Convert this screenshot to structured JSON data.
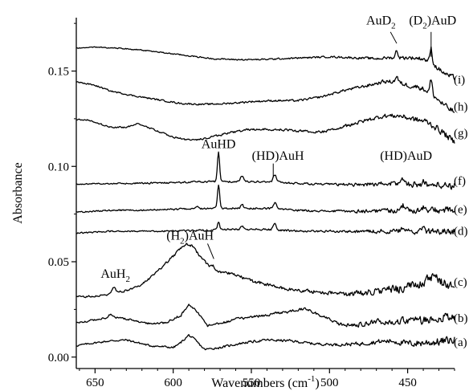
{
  "chart_data": {
    "type": "line",
    "xlabel": "Wavenumbers (cm",
    "xlabel_sup": "-1",
    "xlabel_end": ")",
    "ylabel": "Absorbance",
    "xlim": [
      662,
      420
    ],
    "ylim": [
      -0.006,
      0.178
    ],
    "x_ticks": [
      650,
      600,
      550,
      500,
      450
    ],
    "y_ticks": [
      0.0,
      0.05,
      0.1,
      0.15
    ],
    "y_tick_labels": [
      "0.00",
      "0.05",
      "0.10",
      "0.15"
    ],
    "grid": false,
    "series": [
      {
        "name": "(a)",
        "label_y": 0.0078,
        "base": [
          [
            662,
            0.006
          ],
          [
            650,
            0.0075
          ],
          [
            640,
            0.0085
          ],
          [
            630,
            0.009
          ],
          [
            615,
            0.006
          ],
          [
            600,
            0.005
          ],
          [
            596,
            0.007
          ],
          [
            590,
            0.0115
          ],
          [
            586,
            0.009
          ],
          [
            580,
            0.004
          ],
          [
            570,
            0.005
          ],
          [
            555,
            0.0075
          ],
          [
            540,
            0.009
          ],
          [
            525,
            0.0085
          ],
          [
            510,
            0.007
          ],
          [
            495,
            0.0065
          ],
          [
            480,
            0.007
          ],
          [
            470,
            0.008
          ],
          [
            460,
            0.0085
          ],
          [
            450,
            0.007
          ],
          [
            440,
            0.0075
          ],
          [
            430,
            0.008
          ],
          [
            420,
            0.009
          ]
        ],
        "noise": [
          [
            662,
            0.0004
          ],
          [
            500,
            0.0006
          ],
          [
            460,
            0.0012
          ],
          [
            440,
            0.0018
          ],
          [
            420,
            0.002
          ]
        ],
        "peaks": []
      },
      {
        "name": "(b)",
        "label_y": 0.0205,
        "base": [
          [
            662,
            0.018
          ],
          [
            650,
            0.0195
          ],
          [
            640,
            0.021
          ],
          [
            630,
            0.02
          ],
          [
            615,
            0.0175
          ],
          [
            605,
            0.018
          ],
          [
            595,
            0.022
          ],
          [
            590,
            0.0275
          ],
          [
            585,
            0.024
          ],
          [
            578,
            0.0165
          ],
          [
            570,
            0.0175
          ],
          [
            560,
            0.02
          ],
          [
            545,
            0.0215
          ],
          [
            525,
            0.024
          ],
          [
            515,
            0.0255
          ],
          [
            505,
            0.0215
          ],
          [
            495,
            0.0175
          ],
          [
            485,
            0.0165
          ],
          [
            470,
            0.0185
          ],
          [
            455,
            0.019
          ],
          [
            440,
            0.0195
          ],
          [
            430,
            0.0205
          ],
          [
            420,
            0.021
          ]
        ],
        "noise": [
          [
            662,
            0.0004
          ],
          [
            500,
            0.0007
          ],
          [
            460,
            0.0014
          ],
          [
            440,
            0.002
          ],
          [
            420,
            0.0022
          ]
        ],
        "peaks": [
          [
            640,
            0.0015,
            1.5
          ]
        ]
      },
      {
        "name": "(c)",
        "label_y": 0.0395,
        "base": [
          [
            662,
            0.0315
          ],
          [
            650,
            0.032
          ],
          [
            640,
            0.033
          ],
          [
            630,
            0.035
          ],
          [
            620,
            0.038
          ],
          [
            610,
            0.045
          ],
          [
            600,
            0.053
          ],
          [
            592,
            0.0595
          ],
          [
            588,
            0.0585
          ],
          [
            582,
            0.052
          ],
          [
            575,
            0.046
          ],
          [
            560,
            0.043
          ],
          [
            550,
            0.04
          ],
          [
            540,
            0.038
          ],
          [
            530,
            0.036
          ],
          [
            520,
            0.035
          ],
          [
            505,
            0.034
          ],
          [
            490,
            0.033
          ],
          [
            480,
            0.0335
          ],
          [
            465,
            0.035
          ],
          [
            450,
            0.0365
          ],
          [
            440,
            0.0395
          ],
          [
            433,
            0.0415
          ],
          [
            427,
            0.039
          ],
          [
            420,
            0.0365
          ]
        ],
        "noise": [
          [
            662,
            0.0004
          ],
          [
            500,
            0.0009
          ],
          [
            470,
            0.0016
          ],
          [
            450,
            0.0022
          ],
          [
            420,
            0.0026
          ]
        ],
        "peaks": [
          [
            638,
            0.0035,
            1.4
          ],
          [
            575,
            0.0025,
            1.3
          ]
        ]
      },
      {
        "name": "(d)",
        "label_y": 0.0662,
        "base": [
          [
            662,
            0.065
          ],
          [
            650,
            0.0655
          ],
          [
            640,
            0.066
          ],
          [
            620,
            0.066
          ],
          [
            600,
            0.066
          ],
          [
            580,
            0.0665
          ],
          [
            560,
            0.067
          ],
          [
            540,
            0.067
          ],
          [
            520,
            0.066
          ],
          [
            500,
            0.066
          ],
          [
            480,
            0.066
          ],
          [
            460,
            0.066
          ],
          [
            440,
            0.066
          ],
          [
            420,
            0.066
          ]
        ],
        "noise": [
          [
            662,
            0.0003
          ],
          [
            500,
            0.0005
          ],
          [
            460,
            0.0011
          ],
          [
            420,
            0.0016
          ]
        ],
        "peaks": [
          [
            571,
            0.004,
            1.0
          ],
          [
            556,
            0.0015,
            1.2
          ],
          [
            535,
            0.003,
            1.4
          ],
          [
            453,
            0.002,
            1.4
          ],
          [
            440,
            0.0012,
            1.2
          ]
        ]
      },
      {
        "name": "(e)",
        "label_y": 0.0775,
        "base": [
          [
            662,
            0.076
          ],
          [
            650,
            0.0765
          ],
          [
            640,
            0.077
          ],
          [
            620,
            0.077
          ],
          [
            600,
            0.0775
          ],
          [
            580,
            0.078
          ],
          [
            560,
            0.078
          ],
          [
            540,
            0.078
          ],
          [
            520,
            0.077
          ],
          [
            500,
            0.0765
          ],
          [
            480,
            0.0765
          ],
          [
            460,
            0.077
          ],
          [
            440,
            0.077
          ],
          [
            420,
            0.077
          ]
        ],
        "noise": [
          [
            662,
            0.0003
          ],
          [
            500,
            0.0005
          ],
          [
            460,
            0.0012
          ],
          [
            420,
            0.0017
          ]
        ],
        "peaks": [
          [
            585,
            0.0012,
            1.4
          ],
          [
            571,
            0.0125,
            1.0
          ],
          [
            556,
            0.002,
            1.2
          ],
          [
            535,
            0.003,
            1.4
          ],
          [
            453,
            0.0025,
            1.4
          ],
          [
            440,
            0.0015,
            1.2
          ]
        ]
      },
      {
        "name": "(f)",
        "label_y": 0.0925,
        "base": [
          [
            662,
            0.0905
          ],
          [
            650,
            0.091
          ],
          [
            640,
            0.091
          ],
          [
            620,
            0.0912
          ],
          [
            600,
            0.0915
          ],
          [
            580,
            0.092
          ],
          [
            560,
            0.092
          ],
          [
            540,
            0.092
          ],
          [
            520,
            0.091
          ],
          [
            500,
            0.0905
          ],
          [
            480,
            0.0905
          ],
          [
            460,
            0.091
          ],
          [
            440,
            0.0905
          ],
          [
            420,
            0.09
          ]
        ],
        "noise": [
          [
            662,
            0.0003
          ],
          [
            500,
            0.0005
          ],
          [
            460,
            0.0012
          ],
          [
            420,
            0.0018
          ]
        ],
        "peaks": [
          [
            571,
            0.015,
            1.0
          ],
          [
            556,
            0.003,
            1.2
          ],
          [
            535,
            0.004,
            1.4
          ],
          [
            453,
            0.003,
            1.4
          ],
          [
            440,
            0.0015,
            1.2
          ]
        ]
      },
      {
        "name": "(g)",
        "label_y": 0.1175,
        "base": [
          [
            662,
            0.1245
          ],
          [
            655,
            0.1245
          ],
          [
            650,
            0.123
          ],
          [
            640,
            0.1205
          ],
          [
            630,
            0.1205
          ],
          [
            622,
            0.1225
          ],
          [
            610,
            0.1185
          ],
          [
            600,
            0.1155
          ],
          [
            590,
            0.1138
          ],
          [
            580,
            0.1145
          ],
          [
            565,
            0.1175
          ],
          [
            550,
            0.1195
          ],
          [
            535,
            0.1195
          ],
          [
            520,
            0.1185
          ],
          [
            505,
            0.118
          ],
          [
            490,
            0.121
          ],
          [
            475,
            0.1245
          ],
          [
            465,
            0.1265
          ],
          [
            455,
            0.1265
          ],
          [
            445,
            0.1245
          ],
          [
            438,
            0.1235
          ],
          [
            433,
            0.121
          ],
          [
            427,
            0.1175
          ],
          [
            420,
            0.1125
          ]
        ],
        "noise": [
          [
            662,
            0.0003
          ],
          [
            500,
            0.0006
          ],
          [
            460,
            0.001
          ],
          [
            440,
            0.0014
          ],
          [
            420,
            0.0016
          ]
        ],
        "peaks": []
      },
      {
        "name": "(h)",
        "label_y": 0.1315,
        "base": [
          [
            662,
            0.1445
          ],
          [
            650,
            0.1425
          ],
          [
            640,
            0.1395
          ],
          [
            625,
            0.137
          ],
          [
            610,
            0.135
          ],
          [
            595,
            0.133
          ],
          [
            580,
            0.1325
          ],
          [
            565,
            0.133
          ],
          [
            550,
            0.134
          ],
          [
            535,
            0.1345
          ],
          [
            520,
            0.1345
          ],
          [
            505,
            0.1365
          ],
          [
            490,
            0.14
          ],
          [
            475,
            0.1425
          ],
          [
            465,
            0.1445
          ],
          [
            458,
            0.1445
          ],
          [
            450,
            0.1425
          ],
          [
            442,
            0.1415
          ],
          [
            436,
            0.139
          ],
          [
            430,
            0.1345
          ],
          [
            425,
            0.131
          ],
          [
            420,
            0.1285
          ]
        ],
        "noise": [
          [
            662,
            0.0003
          ],
          [
            500,
            0.0005
          ],
          [
            460,
            0.0009
          ],
          [
            440,
            0.0012
          ],
          [
            420,
            0.0014
          ]
        ],
        "peaks": [
          [
            457,
            0.003,
            1.1
          ],
          [
            435,
            0.007,
            1.0
          ]
        ]
      },
      {
        "name": "(i)",
        "label_y": 0.1455,
        "base": [
          [
            662,
            0.162
          ],
          [
            650,
            0.1625
          ],
          [
            635,
            0.162
          ],
          [
            620,
            0.161
          ],
          [
            605,
            0.1595
          ],
          [
            590,
            0.158
          ],
          [
            575,
            0.1565
          ],
          [
            560,
            0.156
          ],
          [
            545,
            0.156
          ],
          [
            530,
            0.1565
          ],
          [
            515,
            0.157
          ],
          [
            500,
            0.1575
          ],
          [
            485,
            0.157
          ],
          [
            470,
            0.1565
          ],
          [
            462,
            0.157
          ],
          [
            455,
            0.157
          ],
          [
            448,
            0.157
          ],
          [
            440,
            0.1565
          ],
          [
            435,
            0.1545
          ],
          [
            430,
            0.151
          ],
          [
            425,
            0.148
          ],
          [
            420,
            0.1465
          ]
        ],
        "noise": [
          [
            662,
            0.0002
          ],
          [
            500,
            0.0004
          ],
          [
            460,
            0.0007
          ],
          [
            440,
            0.001
          ],
          [
            420,
            0.0012
          ]
        ],
        "peaks": [
          [
            457,
            0.004,
            1.0
          ],
          [
            435,
            0.0075,
            1.0
          ]
        ]
      }
    ],
    "annotations": [
      {
        "id": "auh2",
        "main": "AuH",
        "sub": "2",
        "rest": "",
        "x": 637,
        "y": 0.0415,
        "anchor": "middle"
      },
      {
        "id": "h2auh",
        "main": "(H",
        "sub": "2",
        "rest": ")AuH",
        "x": 592,
        "y": 0.0615,
        "anchor": "start",
        "dx": -24
      },
      {
        "id": "auhd",
        "main": "AuHD",
        "sub": "",
        "rest": "",
        "x": 571,
        "y": 0.1095,
        "anchor": "middle"
      },
      {
        "id": "hdauh",
        "main": "(HD)AuH",
        "sub": "",
        "rest": "",
        "x": 533,
        "y": 0.1035,
        "anchor": "middle"
      },
      {
        "id": "hdaud",
        "main": "(HD)AuD",
        "sub": "",
        "rest": "",
        "x": 451,
        "y": 0.1035,
        "anchor": "middle"
      },
      {
        "id": "aud2",
        "main": "AuD",
        "sub": "2",
        "rest": "",
        "x": 464,
        "y": 0.1745,
        "anchor": "middle",
        "dx": -6
      },
      {
        "id": "d2aud",
        "main": "(D",
        "sub": "2",
        "rest": ")AuD",
        "x": 434,
        "y": 0.1745,
        "anchor": "middle"
      }
    ],
    "pointers": [
      {
        "id": "h2auh-ptr",
        "x1": 578,
        "y1": 0.0595,
        "x2": 574,
        "y2": 0.0515
      },
      {
        "id": "hdauh-ptr",
        "x1": 536,
        "y1": 0.1015,
        "x2": 536,
        "y2": 0.0945
      },
      {
        "id": "aud2-ptr",
        "x1": 461,
        "y1": 0.1705,
        "x2": 457,
        "y2": 0.1645
      },
      {
        "id": "d2aud-ptr",
        "x1": 435,
        "y1": 0.1705,
        "x2": 435,
        "y2": 0.1575
      }
    ]
  }
}
